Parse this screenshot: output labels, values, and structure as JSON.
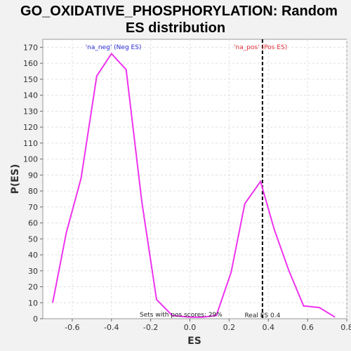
{
  "chart_data": {
    "type": "line",
    "title_line1": "GO_OXIDATIVE_PHOSPHORYLATION: Random",
    "title_line2": "ES distribution",
    "xlabel": "ES",
    "ylabel": "P(ES)",
    "xlim": [
      -0.75,
      0.8
    ],
    "ylim": [
      0,
      175
    ],
    "xticks": [
      -0.6,
      -0.4,
      -0.2,
      0.0,
      0.2,
      0.4,
      0.6,
      0.8
    ],
    "xtick_labels": [
      "-0.6",
      "-0.4",
      "-0.2",
      "0.0",
      "0.2",
      "0.4",
      "0.6",
      "0.8"
    ],
    "yticks": [
      0,
      10,
      20,
      30,
      40,
      50,
      60,
      70,
      80,
      90,
      100,
      110,
      120,
      130,
      140,
      150,
      160,
      170
    ],
    "ytick_labels": [
      "0",
      "10",
      "20",
      "30",
      "40",
      "50",
      "60",
      "70",
      "80",
      "90",
      "100",
      "110",
      "120",
      "130",
      "140",
      "150",
      "160",
      "170"
    ],
    "grid": true,
    "series": [
      {
        "color": "#ee33ee",
        "x": [
          -0.7,
          -0.63,
          -0.555,
          -0.475,
          -0.4,
          -0.325,
          -0.245,
          -0.17,
          -0.09,
          0.0,
          0.065,
          0.135,
          0.21,
          0.28,
          0.36,
          0.43,
          0.505,
          0.58,
          0.66,
          0.74
        ],
        "y": [
          10,
          54,
          88,
          152,
          166,
          156,
          73,
          12,
          2,
          1,
          1,
          2,
          29,
          72,
          86,
          56,
          30,
          8,
          7,
          1
        ]
      }
    ],
    "reference_line": {
      "x": 0.37,
      "style": "dashed",
      "color": "#000000"
    },
    "annotations": {
      "neg": {
        "text": "'na_neg' (Neg ES)",
        "color": "#2b2bd6",
        "x": -0.39
      },
      "pos": {
        "text": "'na_pos' (Pos ES)",
        "color": "#e0303a",
        "x": 0.36
      },
      "sets_pos": {
        "text": "Sets with pos scores: 29%",
        "x": -0.045
      },
      "real_es": {
        "text": "Real ES 0.4",
        "x": 0.37
      }
    },
    "colors": {
      "plot_bg": "#ffffff",
      "page_bg": "#f2f2f2",
      "grid": "#e0e0e0"
    }
  }
}
